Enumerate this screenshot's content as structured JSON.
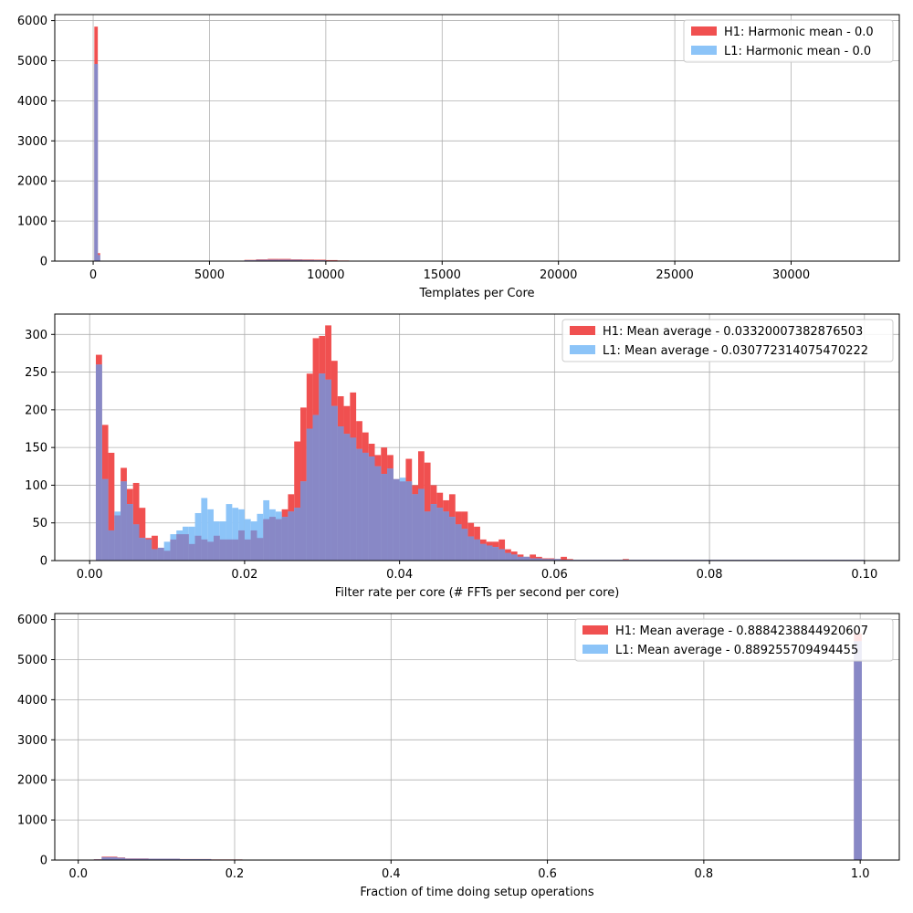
{
  "colors": {
    "h1": "#f05050",
    "l1": "#8cc4f8",
    "overlap": "#8888c6",
    "grid": "#b0b0b0",
    "axis": "#000000",
    "legend_border": "#cccccc"
  },
  "chart_data": [
    {
      "type": "histogram",
      "xlabel": "Templates per Core",
      "ylabel": "",
      "title": "",
      "xlim": [
        -1650,
        34650
      ],
      "ylim": [
        0,
        6150
      ],
      "x_ticks": [
        0,
        5000,
        10000,
        15000,
        20000,
        25000,
        30000
      ],
      "x_tick_labels": [
        "0",
        "5000",
        "10000",
        "15000",
        "20000",
        "25000",
        "30000"
      ],
      "y_ticks": [
        0,
        1000,
        2000,
        3000,
        4000,
        5000,
        6000
      ],
      "y_tick_labels": [
        "0",
        "1000",
        "2000",
        "3000",
        "4000",
        "5000",
        "6000"
      ],
      "grid": true,
      "legend_position": "top-right",
      "series": [
        {
          "name": "H1: Harmonic mean  - 0.0",
          "key": "h1",
          "bins": [
            [
              50,
              200,
              5850
            ],
            [
              200,
              300,
              200
            ],
            [
              6000,
              6500,
              5
            ],
            [
              6500,
              7000,
              30
            ],
            [
              7000,
              7500,
              45
            ],
            [
              7500,
              8000,
              55
            ],
            [
              8000,
              8500,
              55
            ],
            [
              8500,
              9000,
              45
            ],
            [
              9000,
              9500,
              40
            ],
            [
              9500,
              10000,
              35
            ],
            [
              10000,
              10500,
              25
            ],
            [
              10500,
              11000,
              15
            ],
            [
              11000,
              11500,
              8
            ]
          ]
        },
        {
          "name": "L1: Harmonic mean  - 0.0",
          "key": "l1",
          "bins": [
            [
              50,
              200,
              4920
            ],
            [
              200,
              300,
              150
            ],
            [
              6000,
              6500,
              4
            ],
            [
              6500,
              7000,
              20
            ],
            [
              7000,
              7500,
              30
            ],
            [
              7500,
              8000,
              35
            ],
            [
              8000,
              8500,
              35
            ],
            [
              8500,
              9000,
              30
            ],
            [
              9000,
              9500,
              25
            ],
            [
              9500,
              10000,
              20
            ],
            [
              10000,
              10500,
              12
            ],
            [
              10500,
              11000,
              6
            ]
          ]
        }
      ]
    },
    {
      "type": "histogram",
      "xlabel": "Filter rate per core (# FFTs per second per core)",
      "ylabel": "",
      "title": "",
      "xlim": [
        -0.0045,
        0.1045
      ],
      "ylim": [
        0,
        327
      ],
      "x_ticks": [
        0.0,
        0.02,
        0.04,
        0.06,
        0.08,
        0.1
      ],
      "x_tick_labels": [
        "0.00",
        "0.02",
        "0.04",
        "0.06",
        "0.08",
        "0.10"
      ],
      "y_ticks": [
        0,
        50,
        100,
        150,
        200,
        250,
        300
      ],
      "y_tick_labels": [
        "0",
        "50",
        "100",
        "150",
        "200",
        "250",
        "300"
      ],
      "grid": true,
      "legend_position": "top-right",
      "bin_start": 0.0008,
      "bin_width": 0.0008,
      "series": [
        {
          "name": "H1: Mean average - 0.03320007382876503",
          "key": "h1",
          "values": [
            273,
            180,
            143,
            60,
            123,
            95,
            103,
            70,
            30,
            33,
            17,
            13,
            28,
            35,
            35,
            22,
            33,
            28,
            25,
            33,
            28,
            28,
            28,
            40,
            28,
            40,
            30,
            55,
            58,
            55,
            68,
            88,
            158,
            203,
            248,
            295,
            298,
            312,
            265,
            218,
            205,
            223,
            185,
            170,
            155,
            140,
            150,
            140,
            108,
            105,
            135,
            100,
            145,
            130,
            100,
            90,
            80,
            88,
            65,
            65,
            50,
            45,
            28,
            25,
            25,
            28,
            15,
            12,
            8,
            5,
            8,
            5,
            3,
            3,
            2,
            5,
            2,
            1,
            1,
            1,
            1,
            1,
            1,
            1,
            1,
            2,
            1,
            1,
            1,
            1,
            1,
            1,
            1,
            1,
            1,
            1,
            1,
            1,
            1,
            1,
            1,
            1,
            1,
            1,
            1,
            1,
            1,
            1,
            1,
            1,
            1,
            1,
            1,
            1,
            1,
            1,
            1,
            1,
            1,
            1,
            1,
            1,
            1,
            1
          ]
        },
        {
          "name": "L1: Mean average - 0.030772314075470222",
          "key": "l1",
          "values": [
            260,
            108,
            40,
            65,
            105,
            75,
            48,
            30,
            28,
            15,
            17,
            25,
            35,
            40,
            45,
            45,
            63,
            83,
            68,
            52,
            52,
            75,
            70,
            68,
            55,
            52,
            62,
            80,
            68,
            65,
            58,
            65,
            70,
            105,
            175,
            193,
            248,
            240,
            205,
            178,
            168,
            163,
            148,
            143,
            138,
            125,
            115,
            122,
            108,
            110,
            105,
            88,
            95,
            65,
            75,
            70,
            65,
            58,
            48,
            42,
            32,
            28,
            22,
            20,
            18,
            15,
            10,
            8,
            5,
            5,
            3,
            3,
            2,
            2,
            2,
            1,
            1,
            1,
            1,
            1,
            1,
            1,
            1,
            1,
            1,
            1,
            1,
            1,
            1,
            1,
            1,
            1,
            1,
            1,
            1,
            1,
            1,
            1,
            1,
            1,
            1,
            1,
            1,
            1,
            1,
            1,
            1,
            1,
            1,
            1,
            1,
            1,
            1,
            1,
            1,
            1,
            1,
            1,
            1,
            1,
            1,
            1,
            1,
            1
          ]
        }
      ]
    },
    {
      "type": "histogram",
      "xlabel": "Fraction of time doing setup operations",
      "ylabel": "",
      "title": "",
      "xlim": [
        -0.03,
        1.05
      ],
      "ylim": [
        0,
        6150
      ],
      "x_ticks": [
        0.0,
        0.2,
        0.4,
        0.6,
        0.8,
        1.0
      ],
      "x_tick_labels": [
        "0.0",
        "0.2",
        "0.4",
        "0.6",
        "0.8",
        "1.0"
      ],
      "y_ticks": [
        0,
        1000,
        2000,
        3000,
        4000,
        5000,
        6000
      ],
      "y_tick_labels": [
        "0",
        "1000",
        "2000",
        "3000",
        "4000",
        "5000",
        "6000"
      ],
      "grid": true,
      "legend_position": "top-right",
      "series": [
        {
          "name": "H1: Mean average - 0.8884238844920607",
          "key": "h1",
          "bins": [
            [
              0.02,
              0.03,
              20
            ],
            [
              0.03,
              0.05,
              85
            ],
            [
              0.05,
              0.06,
              65
            ],
            [
              0.06,
              0.09,
              40
            ],
            [
              0.09,
              0.13,
              35
            ],
            [
              0.13,
              0.17,
              25
            ],
            [
              0.17,
              0.21,
              15
            ],
            [
              0.21,
              0.24,
              8
            ],
            [
              0.24,
              0.27,
              3
            ],
            [
              0.992,
              1.002,
              5650
            ]
          ]
        },
        {
          "name": "L1: Mean average - 0.889255709494455",
          "key": "l1",
          "bins": [
            [
              0.02,
              0.03,
              15
            ],
            [
              0.03,
              0.05,
              70
            ],
            [
              0.05,
              0.06,
              55
            ],
            [
              0.06,
              0.09,
              35
            ],
            [
              0.09,
              0.13,
              30
            ],
            [
              0.13,
              0.17,
              22
            ],
            [
              0.17,
              0.21,
              12
            ],
            [
              0.21,
              0.24,
              6
            ],
            [
              0.24,
              0.27,
              2
            ],
            [
              0.992,
              1.002,
              5460
            ]
          ]
        }
      ]
    }
  ]
}
